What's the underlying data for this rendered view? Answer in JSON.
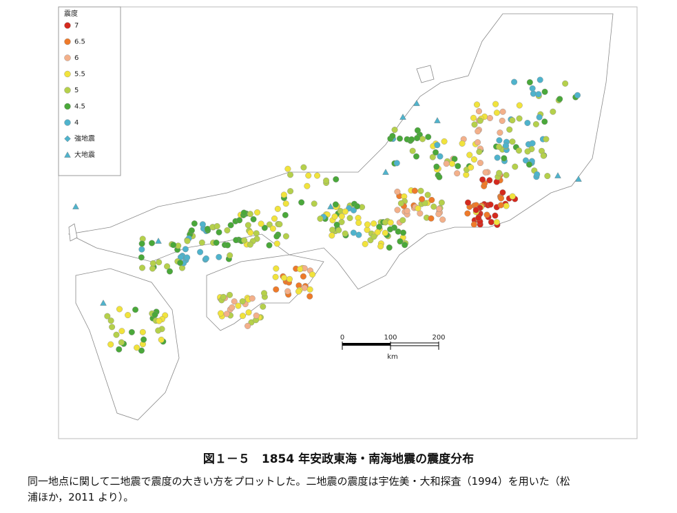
{
  "legend": {
    "title": "震度",
    "items": [
      {
        "label": "7",
        "color": "#d42a1e",
        "shape": "circle"
      },
      {
        "label": "6.5",
        "color": "#ee7a2a",
        "shape": "circle"
      },
      {
        "label": "6",
        "color": "#f3b08a",
        "shape": "circle"
      },
      {
        "label": "5.5",
        "color": "#f1e33c",
        "shape": "circle"
      },
      {
        "label": "5",
        "color": "#b5d04b",
        "shape": "circle"
      },
      {
        "label": "4.5",
        "color": "#4aa83a",
        "shape": "circle"
      },
      {
        "label": "4",
        "color": "#4fb3cc",
        "shape": "circle"
      },
      {
        "label": "強地震",
        "color": "#4fb3cc",
        "shape": "diamond"
      },
      {
        "label": "大地震",
        "color": "#4fb3cc",
        "shape": "triangle"
      }
    ]
  },
  "scale_bar": {
    "ticks": [
      0,
      100,
      200
    ],
    "unit": "km"
  },
  "caption": {
    "title": "図１－５　1854 年安政東海・南海地震の震度分布",
    "lines": [
      "同一地点に関して二地震で震度の大きい方をプロットした。二地震の震度は宇佐美・大和探査（1994）を用いた（松",
      "浦ほか，2011 より）。"
    ]
  }
}
